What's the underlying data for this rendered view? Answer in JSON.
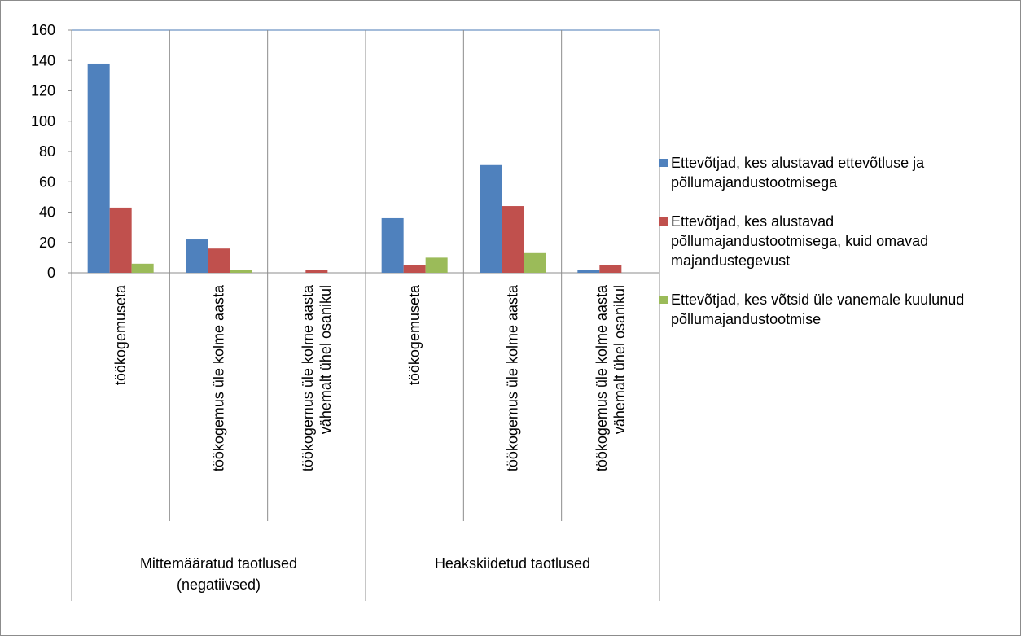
{
  "chart_data": {
    "type": "bar",
    "ylim": [
      0,
      160
    ],
    "yticks": [
      "0",
      "20",
      "40",
      "60",
      "80",
      "100",
      "120",
      "140",
      "160"
    ],
    "grid": "vertical separators between categories",
    "legend_position": "right",
    "groups": [
      {
        "label": "Mittemääratud taotlused (negatiivsed)",
        "categories": [
          "töökogemuseta",
          "töökogemus üle kolme aasta",
          "töökogemus üle kolme aasta vähemalt ühel osanikul"
        ]
      },
      {
        "label": "Heakskiidetud taotlused",
        "categories": [
          "töökogemuseta",
          "töökogemus üle kolme aasta",
          "töökogemus üle kolme aasta vähemalt ühel osanikul"
        ]
      }
    ],
    "categories": [
      "töökogemuseta",
      "töökogemus üle kolme aasta",
      "töökogemus üle kolme aasta vähemalt ühel osanikul",
      "töökogemuseta",
      "töökogemus üle kolme aasta",
      "töökogemus üle kolme aasta vähemalt ühel osanikul"
    ],
    "series": [
      {
        "name": "Ettevõtjad, kes alustavad ettevõtluse ja põllumajandustootmisega",
        "color": "#4F81BD",
        "values": [
          138,
          22,
          0,
          36,
          71,
          2
        ]
      },
      {
        "name": "Ettevõtjad, kes alustavad põllumajandustootmisega, kuid omavad majandustegevust",
        "color": "#C0504D",
        "values": [
          43,
          16,
          2,
          5,
          44,
          5
        ]
      },
      {
        "name": "Ettevõtjad, kes võtsid üle vanemale kuulunud põllumajandustootmise",
        "color": "#9BBB59",
        "values": [
          6,
          2,
          0,
          10,
          13,
          0
        ]
      }
    ]
  },
  "legend": {
    "items": [
      {
        "label": "Ettevõtjad, kes alustavad ettevõtluse ja põllumajandustootmisega",
        "color": "#4F81BD"
      },
      {
        "label": "Ettevõtjad, kes alustavad põllumajandustootmisega, kuid omavad majandustegevust",
        "color": "#C0504D"
      },
      {
        "label": "Ettevõtjad, kes võtsid üle vanemale kuulunud põllumajandustootmise",
        "color": "#9BBB59"
      }
    ]
  }
}
